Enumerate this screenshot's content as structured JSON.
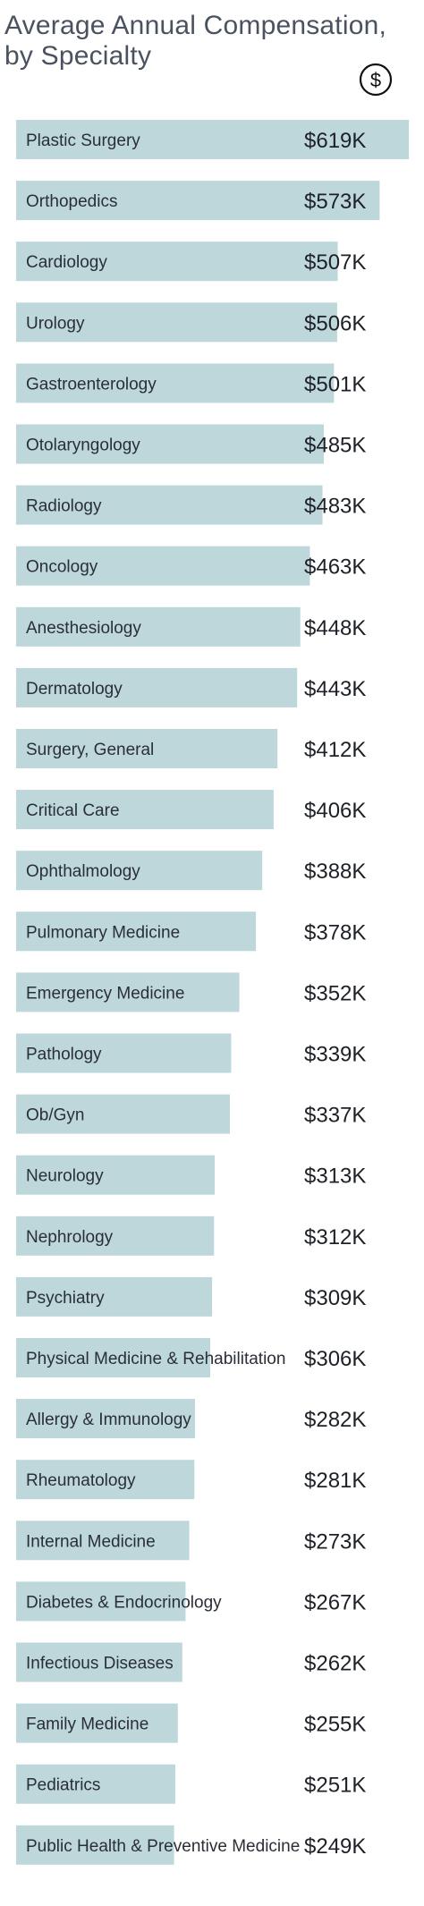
{
  "chart_data": {
    "type": "bar",
    "orientation": "horizontal",
    "title": "Average Annual Compensation, by Specialty",
    "value_prefix": "$",
    "value_suffix": "K",
    "grid": false,
    "legend": "none",
    "bar_color": "#bed7db",
    "title_color": "#4a5260",
    "categories": [
      "Plastic Surgery",
      "Orthopedics",
      "Cardiology",
      "Urology",
      "Gastroenterology",
      "Otolaryngology",
      "Radiology",
      "Oncology",
      "Anesthesiology",
      "Dermatology",
      "Surgery, General",
      "Critical Care",
      "Ophthalmology",
      "Pulmonary Medicine",
      "Emergency Medicine",
      "Pathology",
      "Ob/Gyn",
      "Neurology",
      "Nephrology",
      "Psychiatry",
      "Physical Medicine & Rehabilitation",
      "Allergy & Immunology",
      "Rheumatology",
      "Internal Medicine",
      "Diabetes & Endocrinology",
      "Infectious Diseases",
      "Family Medicine",
      "Pediatrics",
      "Public Health & Preventive Medicine"
    ],
    "values": [
      619,
      573,
      507,
      506,
      501,
      485,
      483,
      463,
      448,
      443,
      412,
      406,
      388,
      378,
      352,
      339,
      337,
      313,
      312,
      309,
      306,
      282,
      281,
      273,
      267,
      262,
      255,
      251,
      249
    ],
    "value_labels": [
      "$619K",
      "$573K",
      "$507K",
      "$506K",
      "$501K",
      "$485K",
      "$483K",
      "$463K",
      "$448K",
      "$443K",
      "$412K",
      "$406K",
      "$388K",
      "$378K",
      "$352K",
      "$339K",
      "$337K",
      "$313K",
      "$312K",
      "$309K",
      "$306K",
      "$282K",
      "$281K",
      "$273K",
      "$267K",
      "$262K",
      "$255K",
      "$251K",
      "$249K"
    ]
  },
  "icons": {
    "header_icon": "dollar-circle-icon",
    "header_icon_glyph": "$"
  }
}
